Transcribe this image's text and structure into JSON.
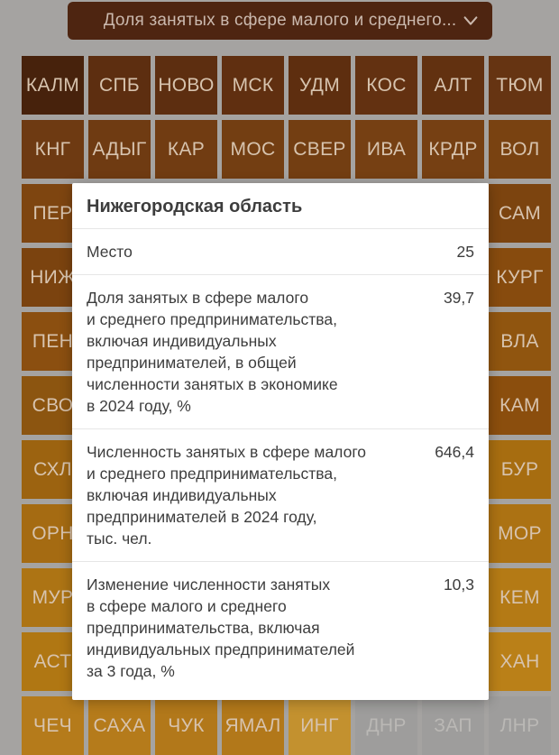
{
  "header": {
    "metric_dropdown": {
      "label": "Доля занятых в сфере малого и среднего...",
      "chevron_icon": "chevron-down"
    }
  },
  "colors": {
    "page_bg": "#a5a3a1",
    "dropdown_bg": "#4e2511",
    "dropdown_text": "#cbb9ae",
    "tile_text": "#d7c3ae",
    "no_data_tile_bg": "#9e9d9c",
    "no_data_tile_text": "#bab8b5",
    "modal_bg": "#ffffff",
    "modal_text": "#3d3d3d",
    "divider": "#e6e6e6"
  },
  "map_grid": {
    "rows": [
      {
        "tiles": [
          {
            "label": "КАЛМ",
            "color": "#47220c"
          },
          {
            "label": "СПБ",
            "color": "#5d2e10"
          },
          {
            "label": "НОВО",
            "color": "#5d2e10"
          },
          {
            "label": "МСК",
            "color": "#602f10"
          },
          {
            "label": "УДМ",
            "color": "#5e2e0f"
          },
          {
            "label": "КОС",
            "color": "#633111"
          },
          {
            "label": "АЛТ",
            "color": "#623110"
          },
          {
            "label": "ТЮМ",
            "color": "#663412"
          }
        ]
      },
      {
        "tiles": [
          {
            "label": "КНГ",
            "color": "#6e3a12"
          },
          {
            "label": "АДЫГ",
            "color": "#6f3b12"
          },
          {
            "label": "КАР",
            "color": "#713c12"
          },
          {
            "label": "МОС",
            "color": "#733e12"
          },
          {
            "label": "СВЕР",
            "color": "#733e12"
          },
          {
            "label": "ИВА",
            "color": "#764013"
          },
          {
            "label": "КРДР",
            "color": "#764013"
          },
          {
            "label": "ВОЛ",
            "color": "#794211"
          }
        ]
      },
      {
        "tiles": [
          {
            "label": "ПЕР",
            "color": "#7e4510"
          },
          {
            "label": "",
            "color": "#7e4510"
          },
          {
            "label": "",
            "color": "#7e4510"
          },
          {
            "label": "",
            "color": "#7e4510"
          },
          {
            "label": "",
            "color": "#7e4510"
          },
          {
            "label": "",
            "color": "#7e4510"
          },
          {
            "label": "",
            "color": "#7e4510"
          },
          {
            "label": "САМ",
            "color": "#7c440f"
          }
        ]
      },
      {
        "tiles": [
          {
            "label": "НИЖ",
            "color": "#7b430f"
          },
          {
            "label": "",
            "color": "#82480f"
          },
          {
            "label": "",
            "color": "#82480f"
          },
          {
            "label": "",
            "color": "#82480f"
          },
          {
            "label": "",
            "color": "#82480f"
          },
          {
            "label": "",
            "color": "#82480f"
          },
          {
            "label": "",
            "color": "#82480f"
          },
          {
            "label": "КУРГ",
            "color": "#874b0e"
          }
        ]
      },
      {
        "tiles": [
          {
            "label": "ПЕН",
            "color": "#8b4f10"
          },
          {
            "label": "",
            "color": "#8d5110"
          },
          {
            "label": "",
            "color": "#8d5110"
          },
          {
            "label": "",
            "color": "#8d5110"
          },
          {
            "label": "",
            "color": "#8d5110"
          },
          {
            "label": "",
            "color": "#8d5110"
          },
          {
            "label": "",
            "color": "#8d5110"
          },
          {
            "label": "ВЛА",
            "color": "#90550f"
          }
        ]
      },
      {
        "tiles": [
          {
            "label": "СВО",
            "color": "#8c5510"
          },
          {
            "label": "",
            "color": "#8e520e"
          },
          {
            "label": "",
            "color": "#8e520e"
          },
          {
            "label": "",
            "color": "#8e520e"
          },
          {
            "label": "",
            "color": "#8e520e"
          },
          {
            "label": "",
            "color": "#8e520e"
          },
          {
            "label": "",
            "color": "#8e520e"
          },
          {
            "label": "КАМ",
            "color": "#8b4e0d"
          }
        ]
      },
      {
        "tiles": [
          {
            "label": "СХЛ",
            "color": "#9c6310"
          },
          {
            "label": "",
            "color": "#a06711"
          },
          {
            "label": "",
            "color": "#a06711"
          },
          {
            "label": "",
            "color": "#a06711"
          },
          {
            "label": "",
            "color": "#a06711"
          },
          {
            "label": "",
            "color": "#a06711"
          },
          {
            "label": "",
            "color": "#a06711"
          },
          {
            "label": "БУР",
            "color": "#a76d10"
          }
        ]
      },
      {
        "tiles": [
          {
            "label": "ОРН",
            "color": "#a56b12"
          },
          {
            "label": "",
            "color": "#a86e13"
          },
          {
            "label": "",
            "color": "#a86e13"
          },
          {
            "label": "",
            "color": "#a86e13"
          },
          {
            "label": "",
            "color": "#a86e13"
          },
          {
            "label": "",
            "color": "#a86e13"
          },
          {
            "label": "",
            "color": "#a86e13"
          },
          {
            "label": "МОР",
            "color": "#ac7213"
          }
        ]
      },
      {
        "tiles": [
          {
            "label": "МУР",
            "color": "#ad7414"
          },
          {
            "label": "",
            "color": "#b07615"
          },
          {
            "label": "",
            "color": "#b07615"
          },
          {
            "label": "",
            "color": "#b07615"
          },
          {
            "label": "",
            "color": "#b07615"
          },
          {
            "label": "",
            "color": "#b07615"
          },
          {
            "label": "",
            "color": "#b07615"
          },
          {
            "label": "КЕМ",
            "color": "#b47a15"
          }
        ]
      },
      {
        "tiles": [
          {
            "label": "АСТ",
            "color": "#b07713"
          },
          {
            "label": "",
            "color": "#b57b16"
          },
          {
            "label": "",
            "color": "#b57b16"
          },
          {
            "label": "",
            "color": "#b57b16"
          },
          {
            "label": "",
            "color": "#b57b16"
          },
          {
            "label": "",
            "color": "#b57b16"
          },
          {
            "label": "",
            "color": "#b57b16"
          },
          {
            "label": "ХАН",
            "color": "#ba8018"
          }
        ]
      },
      {
        "tiles": [
          {
            "label": "ЧЕЧ",
            "color": "#b57b1b"
          },
          {
            "label": "САХА",
            "color": "#b57b1b"
          },
          {
            "label": "ЧУК",
            "color": "#b2781a"
          },
          {
            "label": "ЯМАЛ",
            "color": "#b2781a"
          },
          {
            "label": "ИНГ",
            "color": "#c3912f"
          },
          {
            "label": "ДНР",
            "color": "#9e9d9c",
            "muted": true
          },
          {
            "label": "ЗАП",
            "color": "#9e9d9c",
            "muted": true
          },
          {
            "label": "ЛНР",
            "color": "#9e9d9c",
            "muted": true
          }
        ]
      }
    ]
  },
  "modal": {
    "title": "Нижегородская область",
    "stats": [
      {
        "label": "Место",
        "value": "25"
      },
      {
        "label": "Доля занятых в сфере малого\nи среднего предпринимательства,\nвключая индивидуальных\nпредпринимателей, в общей\nчисленности занятых в экономике\nв 2024 году, %",
        "value": "39,7"
      },
      {
        "label": "Численность занятых в сфере малого\nи среднего предпринимательства,\nвключая индивидуальных\nпредпринимателей в 2024 году,\nтыс. чел.",
        "value": "646,4"
      },
      {
        "label": "Изменение численности занятых\nв сфере малого и среднего\nпредпринимательства, включая\nиндивидуальных предпринимателей\nза 3 года, %",
        "value": "10,3"
      }
    ]
  }
}
